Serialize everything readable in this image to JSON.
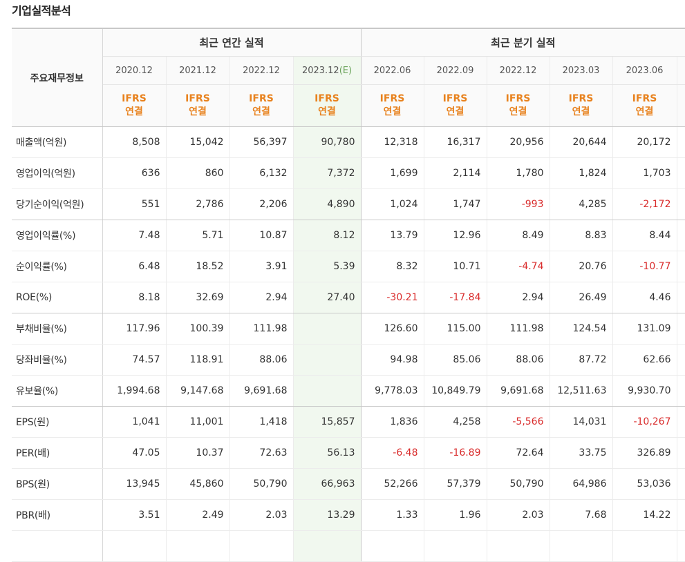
{
  "title": "기업실적분석",
  "row_header": "주요재무정보",
  "groups": {
    "annual": "최근 연간 실적",
    "quarterly": "최근 분기 실적"
  },
  "periods": [
    "2020.12",
    "2021.12",
    "2022.12",
    "2023.12(E)",
    "2022.06",
    "2022.09",
    "2022.12",
    "2023.03",
    "2023.06"
  ],
  "basis_line1": "IFRS",
  "basis_line2": "연결",
  "estimate_column_index": 3,
  "rows": [
    {
      "label": "매출액(억원)",
      "values": [
        "8,508",
        "15,042",
        "56,397",
        "90,780",
        "12,318",
        "16,317",
        "20,956",
        "20,644",
        "20,172"
      ]
    },
    {
      "label": "영업이익(억원)",
      "values": [
        "636",
        "860",
        "6,132",
        "7,372",
        "1,699",
        "2,114",
        "1,780",
        "1,824",
        "1,703"
      ]
    },
    {
      "label": "당기순이익(억원)",
      "values": [
        "551",
        "2,786",
        "2,206",
        "4,890",
        "1,024",
        "1,747",
        "-993",
        "4,285",
        "-2,172"
      ]
    },
    {
      "label": "영업이익률(%)",
      "values": [
        "7.48",
        "5.71",
        "10.87",
        "8.12",
        "13.79",
        "12.96",
        "8.49",
        "8.83",
        "8.44"
      ]
    },
    {
      "label": "순이익률(%)",
      "values": [
        "6.48",
        "18.52",
        "3.91",
        "5.39",
        "8.32",
        "10.71",
        "-4.74",
        "20.76",
        "-10.77"
      ]
    },
    {
      "label": "ROE(%)",
      "values": [
        "8.18",
        "32.69",
        "2.94",
        "27.40",
        "-30.21",
        "-17.84",
        "2.94",
        "26.49",
        "4.46"
      ]
    },
    {
      "label": "부채비율(%)",
      "values": [
        "117.96",
        "100.39",
        "111.98",
        "",
        "126.60",
        "115.00",
        "111.98",
        "124.54",
        "131.09"
      ]
    },
    {
      "label": "당좌비율(%)",
      "values": [
        "74.57",
        "118.91",
        "88.06",
        "",
        "94.98",
        "85.06",
        "88.06",
        "87.72",
        "62.66"
      ]
    },
    {
      "label": "유보율(%)",
      "values": [
        "1,994.68",
        "9,147.68",
        "9,691.68",
        "",
        "9,778.03",
        "10,849.79",
        "9,691.68",
        "12,511.63",
        "9,930.70"
      ]
    },
    {
      "label": "EPS(원)",
      "values": [
        "1,041",
        "11,001",
        "1,418",
        "15,857",
        "1,836",
        "4,258",
        "-5,566",
        "14,031",
        "-10,267"
      ]
    },
    {
      "label": "PER(배)",
      "values": [
        "47.05",
        "10.37",
        "72.63",
        "56.13",
        "-6.48",
        "-16.89",
        "72.64",
        "33.75",
        "326.89"
      ]
    },
    {
      "label": "BPS(원)",
      "values": [
        "13,945",
        "45,860",
        "50,790",
        "66,963",
        "52,266",
        "57,379",
        "50,790",
        "64,986",
        "53,036"
      ]
    },
    {
      "label": "PBR(배)",
      "values": [
        "3.51",
        "2.49",
        "2.03",
        "13.29",
        "1.33",
        "1.96",
        "2.03",
        "7.68",
        "14.22"
      ]
    },
    {
      "label": "",
      "values": [
        "",
        "",
        "",
        "",
        "",
        "",
        "",
        "",
        ""
      ]
    }
  ],
  "colors": {
    "ifrs": "#e8821e",
    "negative": "#d92b2b",
    "estimate_bg": "#f1f8ef"
  }
}
